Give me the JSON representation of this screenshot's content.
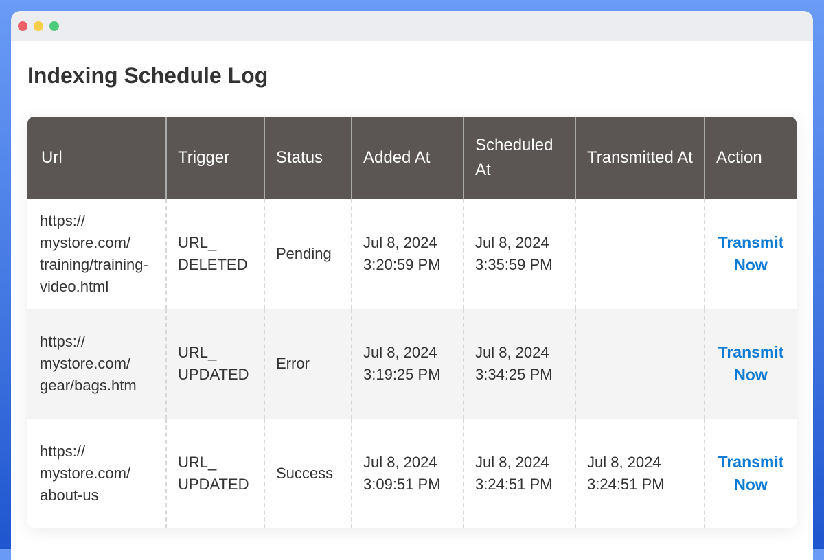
{
  "page": {
    "title": "Indexing Schedule Log"
  },
  "colors": {
    "header_bg": "#5b5653",
    "link": "#0c7bd6"
  },
  "table": {
    "columns": [
      "Url",
      "Trigger",
      "Status",
      "Added At",
      "Scheduled At",
      "Transmitted At",
      "Action"
    ],
    "rows": [
      {
        "url": "https://mystore.com/training/training-video.html",
        "trigger": "URL_DELETED",
        "status": "Pending",
        "added_at": "Jul 8, 2024 3:20:59 PM",
        "scheduled_at": "Jul 8, 2024 3:35:59 PM",
        "transmitted_at": "",
        "action": "Transmit Now"
      },
      {
        "url": "https://mystore.com/gear/bags.htm",
        "trigger": "URL_UPDATED",
        "status": "Error",
        "added_at": "Jul 8, 2024 3:19:25 PM",
        "scheduled_at": "Jul 8, 2024 3:34:25 PM",
        "transmitted_at": "",
        "action": "Transmit Now"
      },
      {
        "url": "https://mystore.com/about-us",
        "trigger": "URL_UPDATED",
        "status": "Success",
        "added_at": "Jul 8, 2024 3:09:51 PM",
        "scheduled_at": "Jul 8, 2024 3:24:51 PM",
        "transmitted_at": "Jul 8, 2024 3:24:51 PM",
        "action": "Transmit Now"
      }
    ]
  }
}
